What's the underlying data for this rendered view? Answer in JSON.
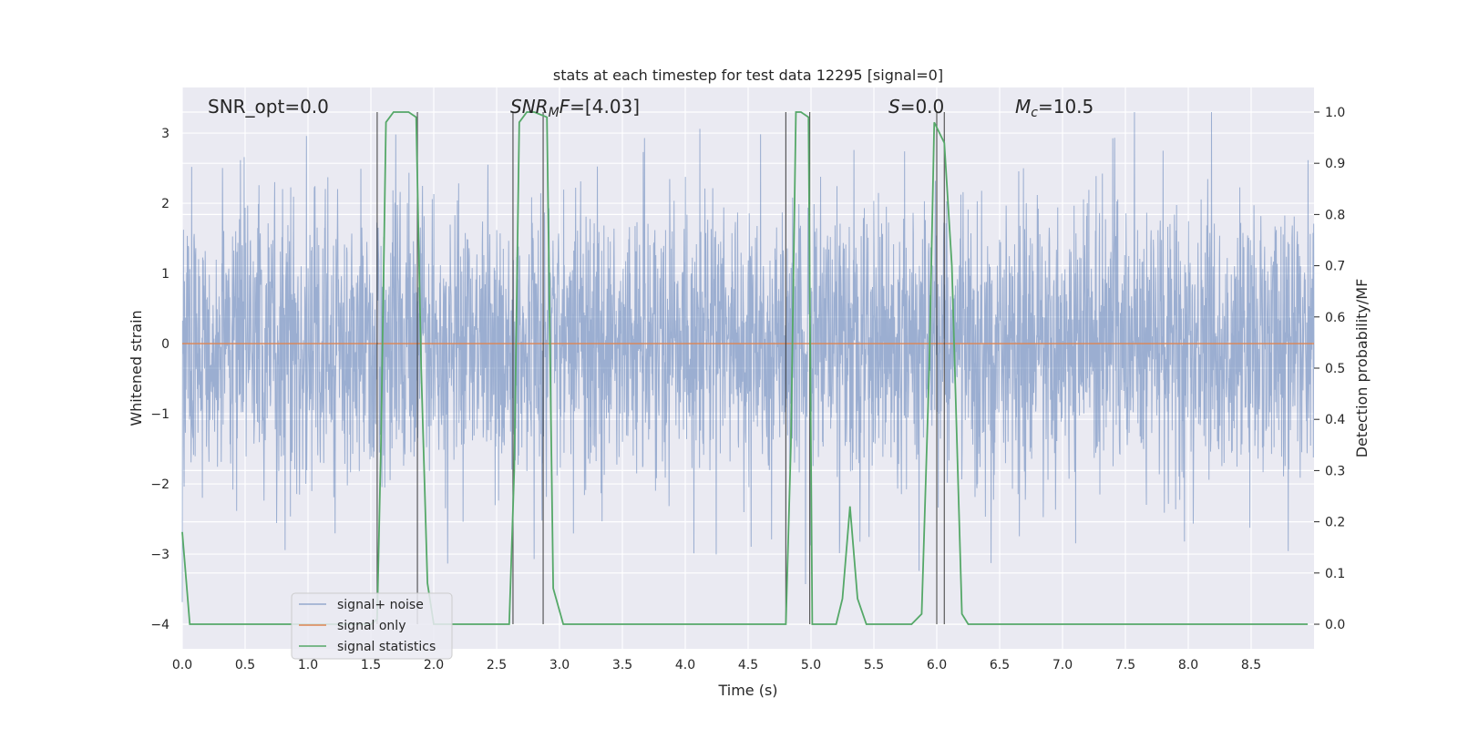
{
  "chart_data": {
    "type": "line",
    "title": "stats at each timestep for test data 12295 [signal=0]",
    "xlabel": "Time (s)",
    "ylabel": "Whitened strain",
    "y2label": "Detection probability/MF",
    "xlim": [
      0,
      9.0
    ],
    "ylim": [
      -4.35,
      3.65
    ],
    "y2lim": [
      -0.048,
      1.048
    ],
    "xticks": [
      "0.0",
      "0.5",
      "1.0",
      "1.5",
      "2.0",
      "2.5",
      "3.0",
      "3.5",
      "4.0",
      "4.5",
      "5.0",
      "5.5",
      "6.0",
      "6.5",
      "7.0",
      "7.5",
      "8.0",
      "8.5"
    ],
    "yticks": [
      "3",
      "2",
      "1",
      "0",
      "−1",
      "−2",
      "−3",
      "−4"
    ],
    "y2ticks": [
      "1.0",
      "0.9",
      "0.8",
      "0.7",
      "0.6",
      "0.5",
      "0.4",
      "0.3",
      "0.2",
      "0.1",
      "0.0"
    ],
    "grid": true,
    "annotations": {
      "snr_opt": "SNR_opt=0.0",
      "snr_mf_main": "SNR",
      "snr_mf_sub": "M",
      "snr_mf_rest": "F=[4.03]",
      "s_main": "S",
      "s_rest": "=0.0",
      "mc_main": "M",
      "mc_sub": "c",
      "mc_rest": "=10.5"
    },
    "legend": {
      "position": "lower-left",
      "entries": [
        "signal+ noise",
        "signal only",
        "signal statistics"
      ]
    },
    "series": [
      {
        "name": "signal+ noise",
        "color": "#4c72b0",
        "description_note": "",
        "noise_sigma": 1.0
      },
      {
        "name": "signal only",
        "color": "#dd8452",
        "constant_value": 0
      },
      {
        "name": "signal statistics",
        "color": "#55a868",
        "axis": "right",
        "x": [
          0.0,
          0.06,
          0.12,
          0.2,
          0.4,
          0.8,
          1.2,
          1.5,
          1.55,
          1.58,
          1.62,
          1.68,
          1.8,
          1.86,
          1.9,
          1.95,
          2.0,
          2.3,
          2.6,
          2.64,
          2.68,
          2.74,
          2.8,
          2.9,
          2.95,
          3.03,
          3.2,
          4.0,
          4.7,
          4.8,
          4.84,
          4.88,
          4.92,
          4.98,
          5.01,
          5.06,
          5.14,
          5.2,
          5.25,
          5.31,
          5.37,
          5.44,
          5.5,
          5.6,
          5.7,
          5.8,
          5.88,
          5.94,
          5.98,
          6.06,
          6.12,
          6.2,
          6.25,
          6.5,
          7.5,
          8.5,
          8.95
        ],
        "y": [
          0.18,
          0.0,
          0.0,
          0.0,
          0.0,
          0.0,
          0.0,
          0.0,
          0.01,
          0.35,
          0.98,
          1.0,
          1.0,
          0.99,
          0.5,
          0.08,
          0.0,
          0.0,
          0.0,
          0.3,
          0.98,
          1.0,
          1.0,
          0.99,
          0.07,
          0.0,
          0.0,
          0.0,
          0.0,
          0.0,
          0.35,
          1.0,
          1.0,
          0.99,
          0.0,
          0.0,
          0.0,
          0.0,
          0.05,
          0.23,
          0.05,
          0.0,
          0.0,
          0.0,
          0.0,
          0.0,
          0.02,
          0.5,
          0.98,
          0.94,
          0.7,
          0.02,
          0.0,
          0.0,
          0.0,
          0.0,
          0.0
        ]
      }
    ],
    "vertical_markers": [
      1.55,
      1.87,
      2.63,
      2.87,
      4.8,
      4.99,
      6.0,
      6.06
    ]
  }
}
